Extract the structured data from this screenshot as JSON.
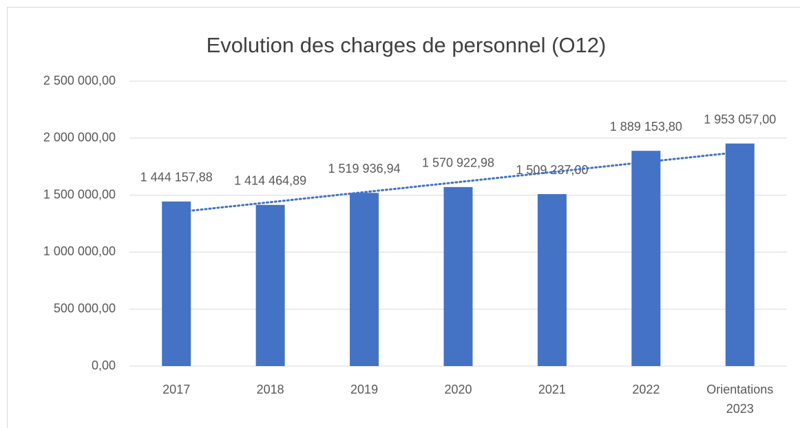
{
  "chart_data": {
    "type": "bar",
    "title": "Evolution des charges de personnel (O12)",
    "categories": [
      "2017",
      "2018",
      "2019",
      "2020",
      "2021",
      "2022",
      "Orientations 2023"
    ],
    "values": [
      1444157.88,
      1414464.89,
      1519936.94,
      1570922.98,
      1509237.0,
      1889153.8,
      1953057.0
    ],
    "value_labels": [
      "1 444 157,88",
      "1 414 464,89",
      "1 519 936,94",
      "1 570 922,98",
      "1 509 237,00",
      "1 889 153,80",
      "1 953 057,00"
    ],
    "color": "#4472c4",
    "ylim": [
      0,
      2500000
    ],
    "yticks": [
      {
        "value": 0,
        "label": "0,00"
      },
      {
        "value": 500000,
        "label": "500 000,00"
      },
      {
        "value": 1000000,
        "label": "1 000 000,00"
      },
      {
        "value": 1500000,
        "label": "1 500 000,00"
      },
      {
        "value": 2000000,
        "label": "2 000 000,00"
      },
      {
        "value": 2500000,
        "label": "2 500 000,00"
      }
    ],
    "grid": true,
    "trendline": "linear"
  }
}
